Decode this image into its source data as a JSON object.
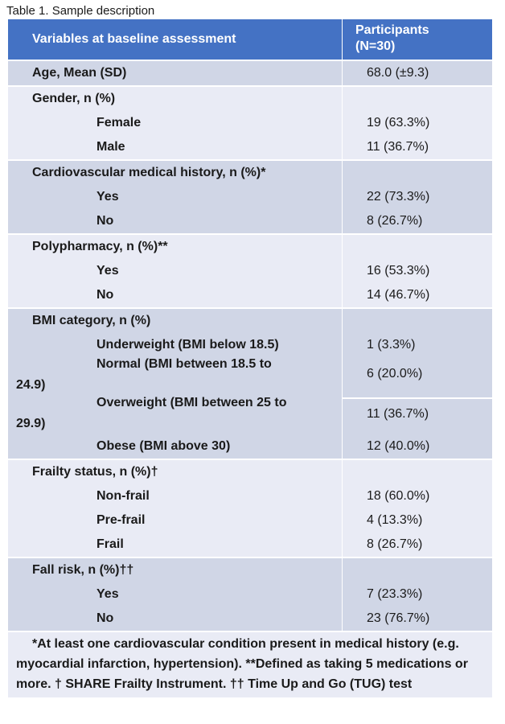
{
  "caption": "Table 1. Sample description",
  "header": {
    "variables": "Variables at baseline assessment",
    "participants_line1": "Participants",
    "participants_line2": "(N=30)"
  },
  "age": {
    "label": "Age, Mean (SD)",
    "value": "68.0 (±9.3)"
  },
  "gender": {
    "label": "Gender, n (%)",
    "female": "Female",
    "female_val": "19 (63.3%)",
    "male": "Male",
    "male_val": "11 (36.7%)"
  },
  "cardio": {
    "label": "Cardiovascular medical history, n (%)*",
    "yes": "Yes",
    "yes_val": "22 (73.3%)",
    "no": "No",
    "no_val": "8 (26.7%)"
  },
  "poly": {
    "label": "Polypharmacy, n (%)**",
    "yes": "Yes",
    "yes_val": "16 (53.3%)",
    "no": "No",
    "no_val": "14 (46.7%)"
  },
  "bmi": {
    "label": "BMI category, n (%)",
    "under": "Underweight (BMI below 18.5)",
    "under_val": "1 (3.3%)",
    "normal_a": "Normal (BMI between 18.5 to",
    "normal_b": "24.9)",
    "normal_val": "6 (20.0%)",
    "over_a": "Overweight (BMI between 25 to",
    "over_b": "29.9)",
    "over_val": "11 (36.7%)",
    "obese": "Obese (BMI above 30)",
    "obese_val": "12 (40.0%)"
  },
  "frailty": {
    "label": "Frailty status, n (%)†",
    "nonfrail": "Non-frail",
    "nonfrail_val": "18 (60.0%)",
    "prefrail": "Pre-frail",
    "prefrail_val": "4 (13.3%)",
    "frail": "Frail",
    "frail_val": "8 (26.7%)"
  },
  "fall": {
    "label": "Fall risk, n (%)††",
    "yes": "Yes",
    "yes_val": "7 (23.3%)",
    "no": "No",
    "no_val": "23 (76.7%)"
  },
  "footnote": "*At least one cardiovascular condition present in medical history (e.g. myocardial infarction, hypertension). **Defined as taking 5 medications or more. † SHARE Frailty Instrument. †† Time Up and Go (TUG) test"
}
